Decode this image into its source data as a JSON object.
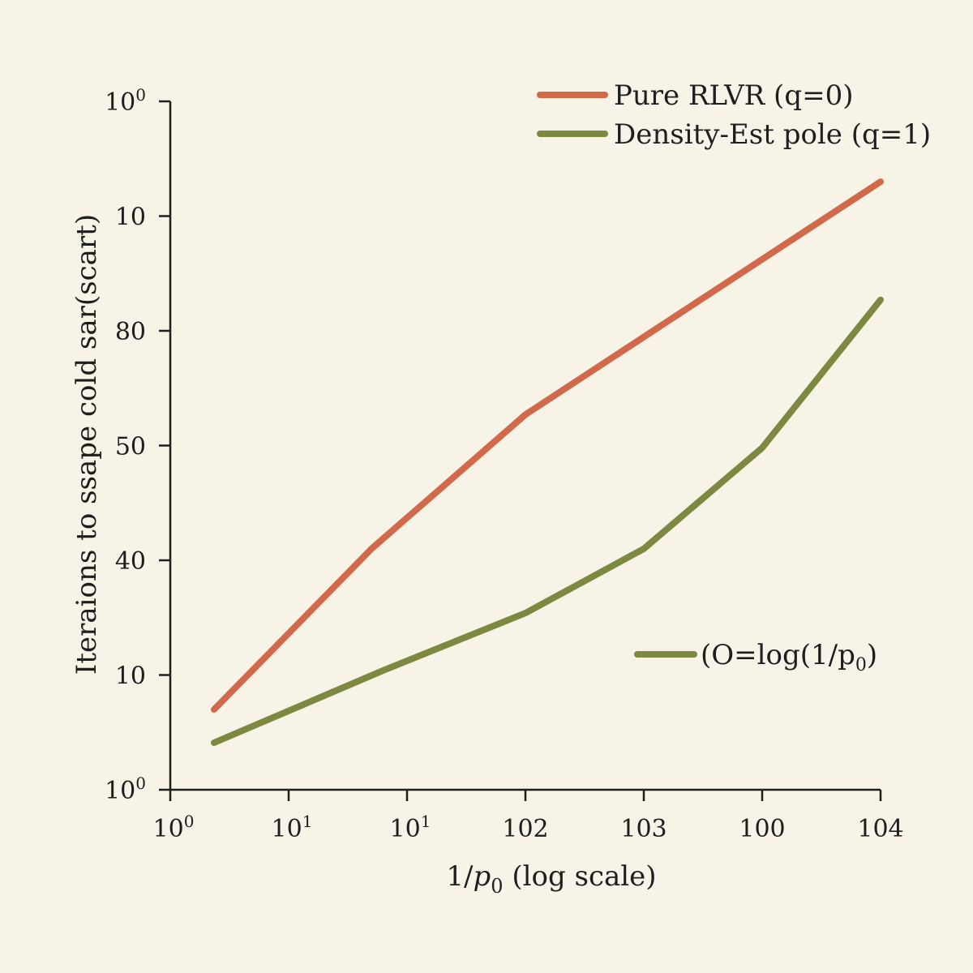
{
  "chart_data": {
    "type": "line",
    "xlabel": "1/p₀ (log scale)",
    "ylabel": "Iteraions to ssape cold sar(scart)",
    "x_ticks": [
      {
        "base": "10",
        "sup": "0"
      },
      {
        "base": "10",
        "sup": "1"
      },
      {
        "base": "10",
        "sup": "1"
      },
      {
        "base": "102",
        "sup": ""
      },
      {
        "base": "103",
        "sup": ""
      },
      {
        "base": "100",
        "sup": ""
      },
      {
        "base": "104",
        "sup": ""
      }
    ],
    "y_ticks": [
      {
        "base": "10",
        "sup": "0"
      },
      {
        "base": "10",
        "sup": ""
      },
      {
        "base": "40",
        "sup": ""
      },
      {
        "base": "50",
        "sup": ""
      },
      {
        "base": "80",
        "sup": ""
      },
      {
        "base": "10",
        "sup": ""
      },
      {
        "base": "10",
        "sup": "0"
      }
    ],
    "x_range": [
      0,
      6
    ],
    "y_range": [
      0,
      6
    ],
    "series": [
      {
        "name": "Pure RLVR (q=0)",
        "color": "#d2694a",
        "points": [
          [
            0.37,
            0.7
          ],
          [
            1.7,
            2.1
          ],
          [
            3.0,
            3.27
          ],
          [
            6.0,
            5.3
          ]
        ]
      },
      {
        "name": "Density-Est pole (q=1)",
        "color": "#7d8840",
        "points": [
          [
            0.37,
            0.41
          ],
          [
            1.8,
            1.04
          ],
          [
            3.0,
            1.54
          ],
          [
            4.0,
            2.1
          ],
          [
            5.0,
            2.98
          ],
          [
            6.0,
            4.27
          ]
        ]
      }
    ],
    "reference": {
      "label_prefix": "(O=log(1/p",
      "label_sub": "0",
      "label_suffix": ")",
      "color": "#7d8840"
    },
    "legend_position": "top-right",
    "grid": false
  }
}
